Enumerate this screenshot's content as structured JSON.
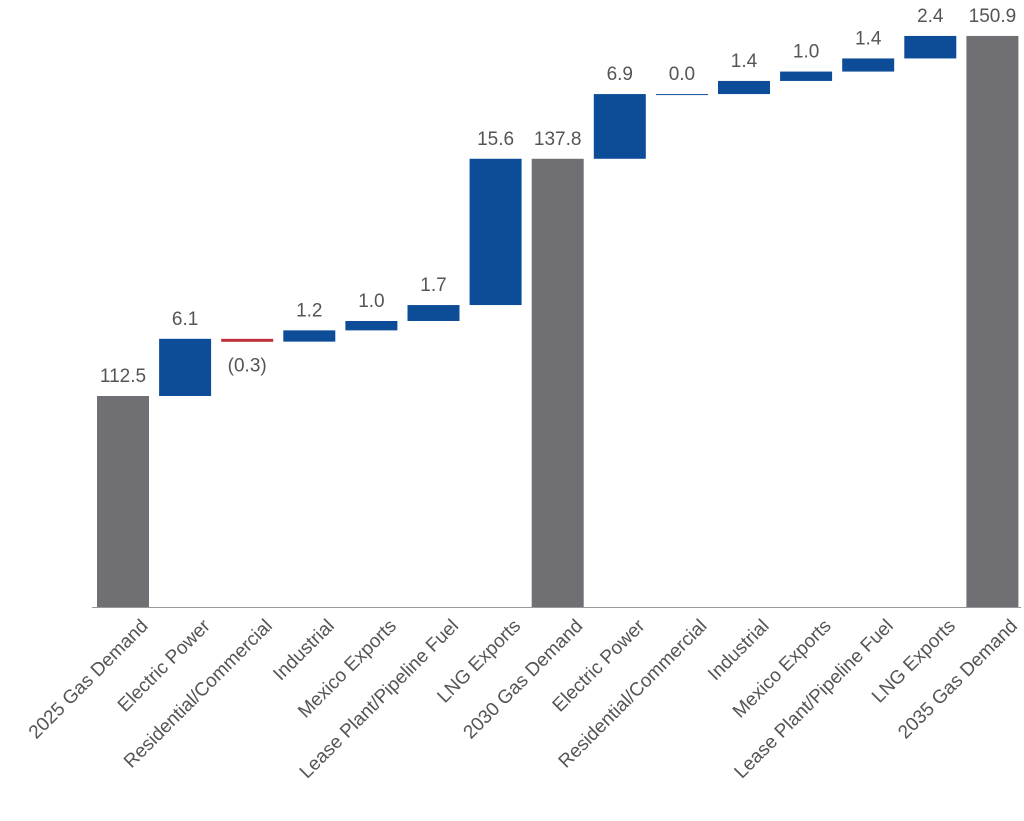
{
  "chart_data": {
    "type": "waterfall",
    "title": "",
    "xlabel": "",
    "ylabel": "",
    "ylim": [
      90,
      151
    ],
    "grid": false,
    "categories": [
      "2025 Gas Demand",
      "Electric Power",
      "Residential/Commercial",
      "Industrial",
      "Mexico Exports",
      "Lease Plant/Pipeline Fuel",
      "LNG Exports",
      "2030 Gas Demand",
      "Electric Power",
      "Residential/Commercial",
      "Industrial",
      "Mexico Exports",
      "Lease Plant/Pipeline Fuel",
      "LNG Exports",
      "2035 Gas Demand"
    ],
    "values": [
      112.5,
      6.1,
      -0.3,
      1.2,
      1.0,
      1.7,
      15.6,
      137.8,
      6.9,
      0.0,
      1.4,
      1.0,
      1.4,
      2.4,
      150.9
    ],
    "kinds": [
      "total",
      "delta",
      "delta",
      "delta",
      "delta",
      "delta",
      "delta",
      "total",
      "delta",
      "delta",
      "delta",
      "delta",
      "delta",
      "delta",
      "total"
    ],
    "labels": [
      "112.5",
      "6.1",
      "(0.3)",
      "1.2",
      "1.0",
      "1.7",
      "15.6",
      "137.8",
      "6.9",
      "0.0",
      "1.4",
      "1.0",
      "1.4",
      "2.4",
      "150.9"
    ],
    "colors": {
      "total": "#707074",
      "increase": "#0d4c97",
      "decrease": "#c0303a",
      "text": "#555555",
      "axis": "#999999"
    }
  }
}
